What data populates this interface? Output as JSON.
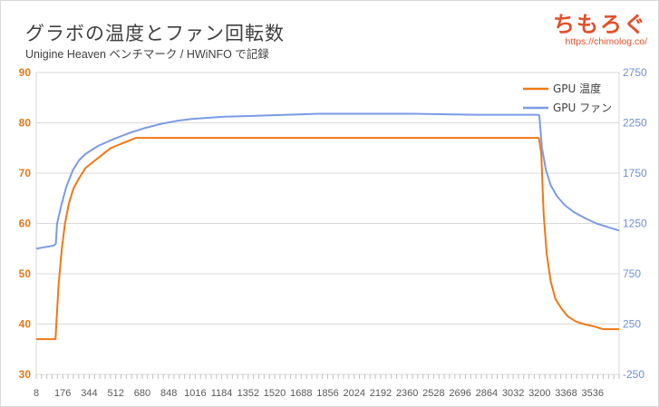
{
  "header": {
    "title": "グラボの温度とファン回転数",
    "subtitle": "Unigine Heaven ベンチマーク  / HWiNFO で記録"
  },
  "brand": {
    "name": "ちもろぐ",
    "url": "https://chimolog.co/"
  },
  "colors": {
    "temp": "#f07818",
    "fan": "#7b9be6",
    "left_axis": "#e47918",
    "right_axis": "#6e8fd8"
  },
  "chart_data": {
    "type": "line",
    "title": "グラボの温度とファン回転数",
    "subtitle": "Unigine Heaven ベンチマーク  / HWiNFO で記録",
    "xlabel": "",
    "ylabel": "",
    "x_ticks": [
      "8",
      "176",
      "344",
      "512",
      "680",
      "848",
      "1016",
      "1184",
      "1352",
      "1520",
      "1688",
      "1856",
      "2024",
      "2192",
      "2360",
      "2528",
      "2696",
      "2864",
      "3032",
      "3200",
      "3368",
      "3536"
    ],
    "xlim": [
      8,
      3704
    ],
    "y_left": {
      "ticks": [
        "30",
        "40",
        "50",
        "60",
        "70",
        "80",
        "90"
      ],
      "lim": [
        30,
        90
      ]
    },
    "y_right": {
      "ticks": [
        "-250",
        "250",
        "750",
        "1250",
        "1750",
        "2250",
        "2750"
      ],
      "lim": [
        -250,
        2750
      ]
    },
    "legend": {
      "position": "top-right"
    },
    "series": [
      {
        "name": "GPU 温度",
        "axis": "left",
        "points": [
          [
            8,
            37
          ],
          [
            120,
            37
          ],
          [
            130,
            37
          ],
          [
            150,
            48
          ],
          [
            170,
            55
          ],
          [
            190,
            60
          ],
          [
            215,
            64
          ],
          [
            245,
            67
          ],
          [
            280,
            69
          ],
          [
            320,
            71
          ],
          [
            360,
            72
          ],
          [
            400,
            73
          ],
          [
            440,
            74
          ],
          [
            480,
            75
          ],
          [
            520,
            75.5
          ],
          [
            560,
            76
          ],
          [
            600,
            76.5
          ],
          [
            640,
            77
          ],
          [
            700,
            77
          ],
          [
            1000,
            77
          ],
          [
            1500,
            77
          ],
          [
            2000,
            77
          ],
          [
            2500,
            77
          ],
          [
            3000,
            77
          ],
          [
            3195,
            77
          ],
          [
            3210,
            74
          ],
          [
            3225,
            62
          ],
          [
            3245,
            54
          ],
          [
            3270,
            48.5
          ],
          [
            3300,
            45
          ],
          [
            3340,
            43
          ],
          [
            3380,
            41.5
          ],
          [
            3430,
            40.5
          ],
          [
            3480,
            40
          ],
          [
            3550,
            39.5
          ],
          [
            3600,
            39
          ],
          [
            3704,
            39
          ]
        ]
      },
      {
        "name": "GPU ファン",
        "axis": "right",
        "points": [
          [
            8,
            1000
          ],
          [
            120,
            1030
          ],
          [
            132,
            1050
          ],
          [
            140,
            1250
          ],
          [
            170,
            1450
          ],
          [
            200,
            1620
          ],
          [
            240,
            1780
          ],
          [
            280,
            1880
          ],
          [
            320,
            1940
          ],
          [
            400,
            2020
          ],
          [
            500,
            2090
          ],
          [
            600,
            2150
          ],
          [
            700,
            2200
          ],
          [
            800,
            2240
          ],
          [
            900,
            2270
          ],
          [
            1000,
            2290
          ],
          [
            1200,
            2310
          ],
          [
            1400,
            2320
          ],
          [
            1600,
            2330
          ],
          [
            1800,
            2340
          ],
          [
            2000,
            2340
          ],
          [
            2400,
            2340
          ],
          [
            2800,
            2330
          ],
          [
            3000,
            2330
          ],
          [
            3190,
            2330
          ],
          [
            3198,
            2320
          ],
          [
            3215,
            2000
          ],
          [
            3240,
            1780
          ],
          [
            3270,
            1630
          ],
          [
            3310,
            1520
          ],
          [
            3360,
            1430
          ],
          [
            3420,
            1360
          ],
          [
            3490,
            1300
          ],
          [
            3560,
            1250
          ],
          [
            3640,
            1210
          ],
          [
            3704,
            1180
          ]
        ]
      }
    ]
  }
}
